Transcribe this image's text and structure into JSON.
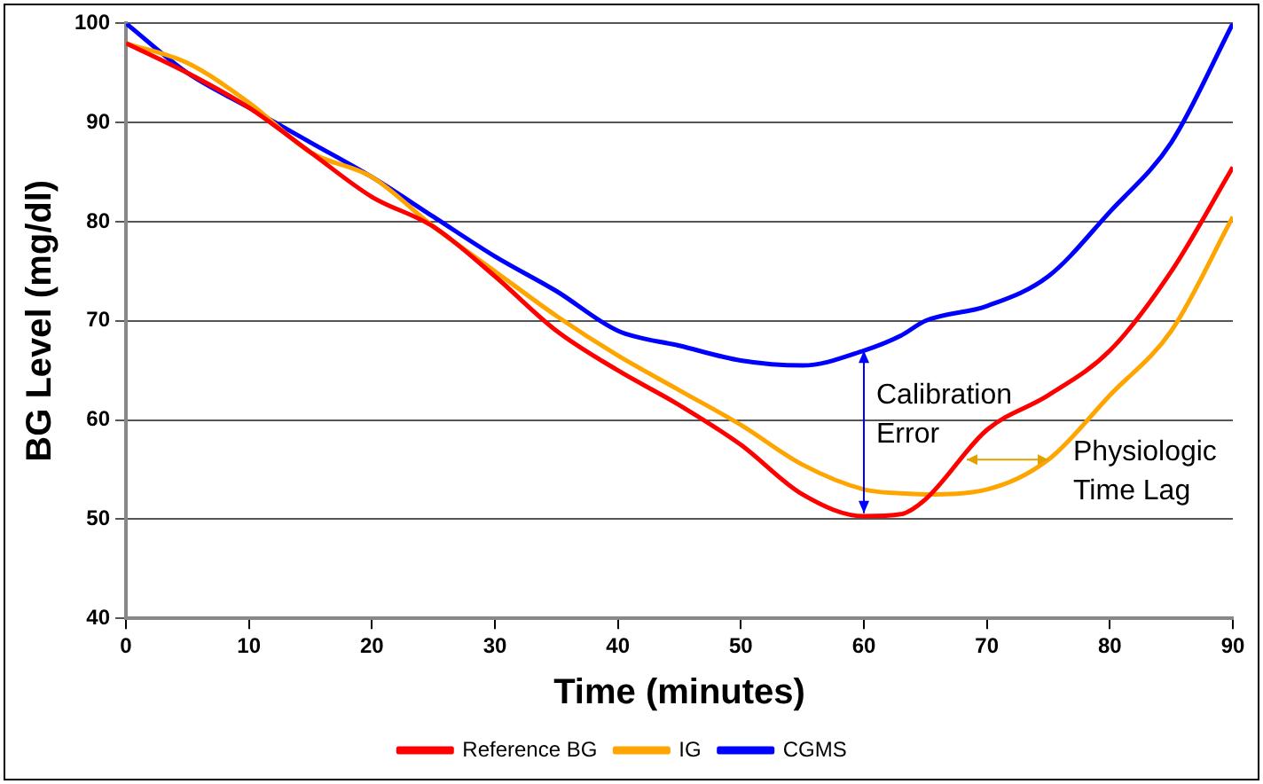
{
  "chart_data": {
    "type": "line",
    "xlabel": "Time (minutes)",
    "ylabel": "BG Level (mg/dl)",
    "xlim": [
      0,
      90
    ],
    "xticks": [
      0,
      10,
      20,
      30,
      40,
      50,
      60,
      70,
      80,
      90
    ],
    "ylim": [
      40,
      100
    ],
    "yticks": [
      40,
      50,
      60,
      70,
      80,
      90,
      100
    ],
    "grid": "y",
    "legend": "bottom",
    "marker": "none",
    "line_style": "solid",
    "x": [
      0,
      5,
      10,
      15,
      20,
      25,
      30,
      35,
      40,
      45,
      50,
      55,
      60,
      63,
      65,
      70,
      75,
      80,
      85,
      90
    ],
    "series": [
      {
        "name": "Reference BG",
        "color": "#ff0000",
        "values": [
          98,
          95,
          91.5,
          87,
          82.5,
          79.5,
          74.5,
          69,
          65,
          61.5,
          57.5,
          52.5,
          50.3,
          50.5,
          52,
          59,
          62.5,
          67,
          75,
          85.5
        ]
      },
      {
        "name": "IG",
        "color": "#ffa500",
        "values": [
          98,
          96,
          92,
          87,
          84.5,
          79.5,
          75,
          70.5,
          66.5,
          63,
          59.5,
          55.5,
          53,
          52.6,
          52.5,
          53,
          56,
          62.5,
          69,
          80.5
        ]
      },
      {
        "name": "CGMS",
        "color": "#0000ff",
        "values": [
          100,
          95,
          91.5,
          88,
          84.5,
          80.5,
          76.5,
          73,
          69,
          67.5,
          66,
          65.5,
          67,
          68.5,
          70,
          71.5,
          74.5,
          81,
          88,
          100
        ]
      }
    ],
    "annotations": [
      "Calibration Error",
      {
        "text": "Physiologic Time Lag",
        "x": 75,
        "y": 56
      }
    ]
  }
}
